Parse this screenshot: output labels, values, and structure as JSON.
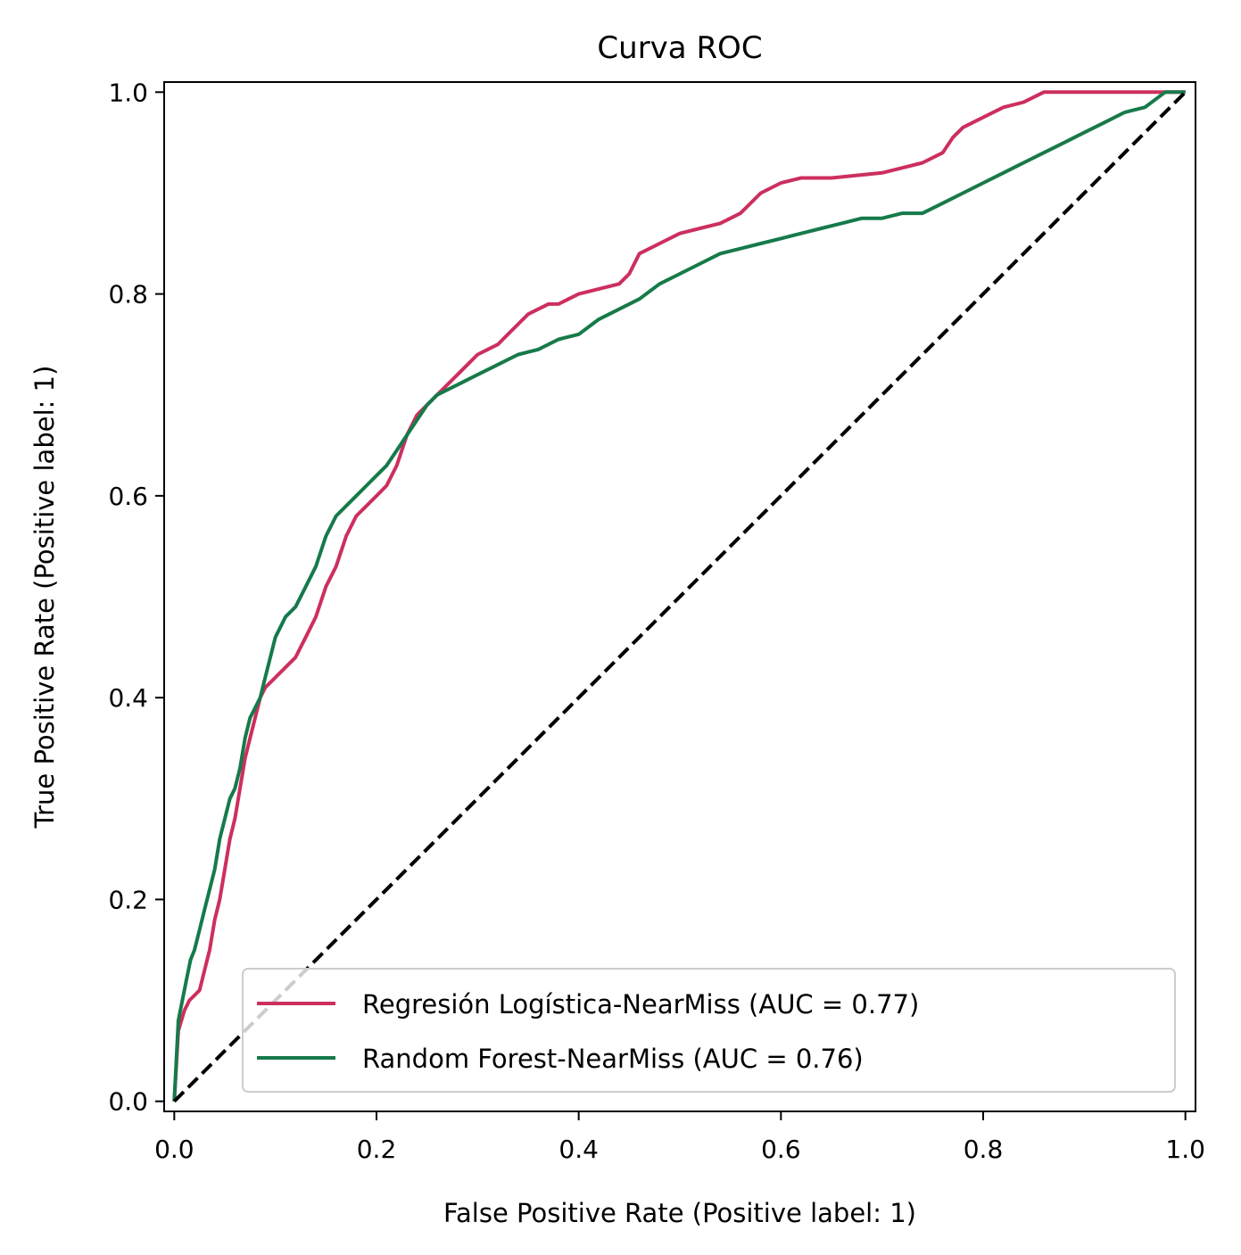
{
  "chart_data": {
    "type": "line",
    "title": "Curva ROC",
    "xlabel": "False Positive Rate (Positive label: 1)",
    "ylabel": "True Positive Rate (Positive label: 1)",
    "xlim": [
      -0.01,
      1.01
    ],
    "ylim": [
      -0.01,
      1.01
    ],
    "xticks": [
      "0.0",
      "0.2",
      "0.4",
      "0.6",
      "0.8",
      "1.0"
    ],
    "yticks": [
      "0.0",
      "0.2",
      "0.4",
      "0.6",
      "0.8",
      "1.0"
    ],
    "legend_position": "lower-right",
    "grid": false,
    "series": [
      {
        "name": "Regresión Logística-NearMiss (AUC = 0.77)",
        "color": "#cc2f5e",
        "x": [
          0,
          0.004,
          0.01,
          0.015,
          0.02,
          0.025,
          0.03,
          0.035,
          0.04,
          0.045,
          0.05,
          0.055,
          0.06,
          0.065,
          0.07,
          0.075,
          0.08,
          0.085,
          0.09,
          0.1,
          0.11,
          0.12,
          0.13,
          0.14,
          0.15,
          0.16,
          0.17,
          0.18,
          0.19,
          0.2,
          0.21,
          0.22,
          0.23,
          0.24,
          0.25,
          0.26,
          0.27,
          0.28,
          0.29,
          0.3,
          0.31,
          0.32,
          0.33,
          0.34,
          0.35,
          0.36,
          0.37,
          0.38,
          0.39,
          0.4,
          0.42,
          0.44,
          0.45,
          0.46,
          0.47,
          0.48,
          0.5,
          0.52,
          0.54,
          0.56,
          0.58,
          0.6,
          0.62,
          0.65,
          0.7,
          0.72,
          0.74,
          0.76,
          0.77,
          0.78,
          0.8,
          0.82,
          0.84,
          0.86,
          0.88,
          0.9,
          0.93,
          0.95,
          0.97,
          1.0
        ],
        "y": [
          0,
          0.07,
          0.09,
          0.1,
          0.105,
          0.11,
          0.13,
          0.15,
          0.18,
          0.2,
          0.23,
          0.26,
          0.28,
          0.31,
          0.34,
          0.36,
          0.38,
          0.4,
          0.41,
          0.42,
          0.43,
          0.44,
          0.46,
          0.48,
          0.51,
          0.53,
          0.56,
          0.58,
          0.59,
          0.6,
          0.61,
          0.63,
          0.66,
          0.68,
          0.69,
          0.7,
          0.71,
          0.72,
          0.73,
          0.74,
          0.745,
          0.75,
          0.76,
          0.77,
          0.78,
          0.785,
          0.79,
          0.79,
          0.795,
          0.8,
          0.805,
          0.81,
          0.82,
          0.84,
          0.845,
          0.85,
          0.86,
          0.865,
          0.87,
          0.88,
          0.9,
          0.91,
          0.915,
          0.915,
          0.92,
          0.925,
          0.93,
          0.94,
          0.955,
          0.965,
          0.975,
          0.985,
          0.99,
          1.0,
          1.0,
          1.0,
          1.0,
          1.0,
          1.0,
          1.0
        ]
      },
      {
        "name": "Random Forest-NearMiss (AUC = 0.76)",
        "color": "#167a4a",
        "x": [
          0,
          0.004,
          0.008,
          0.012,
          0.016,
          0.02,
          0.025,
          0.03,
          0.035,
          0.04,
          0.045,
          0.05,
          0.055,
          0.06,
          0.065,
          0.07,
          0.075,
          0.08,
          0.085,
          0.09,
          0.095,
          0.1,
          0.11,
          0.12,
          0.13,
          0.14,
          0.15,
          0.16,
          0.17,
          0.18,
          0.19,
          0.2,
          0.21,
          0.22,
          0.23,
          0.24,
          0.25,
          0.26,
          0.27,
          0.28,
          0.3,
          0.32,
          0.34,
          0.36,
          0.38,
          0.4,
          0.42,
          0.44,
          0.46,
          0.48,
          0.5,
          0.52,
          0.54,
          0.56,
          0.58,
          0.6,
          0.62,
          0.64,
          0.66,
          0.68,
          0.7,
          0.72,
          0.74,
          0.76,
          0.78,
          0.8,
          0.82,
          0.84,
          0.86,
          0.88,
          0.9,
          0.92,
          0.94,
          0.96,
          0.98,
          1.0
        ],
        "y": [
          0,
          0.08,
          0.1,
          0.12,
          0.14,
          0.15,
          0.17,
          0.19,
          0.21,
          0.23,
          0.26,
          0.28,
          0.3,
          0.31,
          0.33,
          0.36,
          0.38,
          0.39,
          0.4,
          0.42,
          0.44,
          0.46,
          0.48,
          0.49,
          0.51,
          0.53,
          0.56,
          0.58,
          0.59,
          0.6,
          0.61,
          0.62,
          0.63,
          0.645,
          0.66,
          0.675,
          0.69,
          0.7,
          0.705,
          0.71,
          0.72,
          0.73,
          0.74,
          0.745,
          0.755,
          0.76,
          0.775,
          0.785,
          0.795,
          0.81,
          0.82,
          0.83,
          0.84,
          0.845,
          0.85,
          0.855,
          0.86,
          0.865,
          0.87,
          0.875,
          0.875,
          0.88,
          0.88,
          0.89,
          0.9,
          0.91,
          0.92,
          0.93,
          0.94,
          0.95,
          0.96,
          0.97,
          0.98,
          0.985,
          1.0,
          1.0
        ]
      }
    ],
    "reference_line": {
      "style": "dashed",
      "color": "#000000",
      "x": [
        0,
        1
      ],
      "y": [
        0,
        1
      ]
    }
  }
}
